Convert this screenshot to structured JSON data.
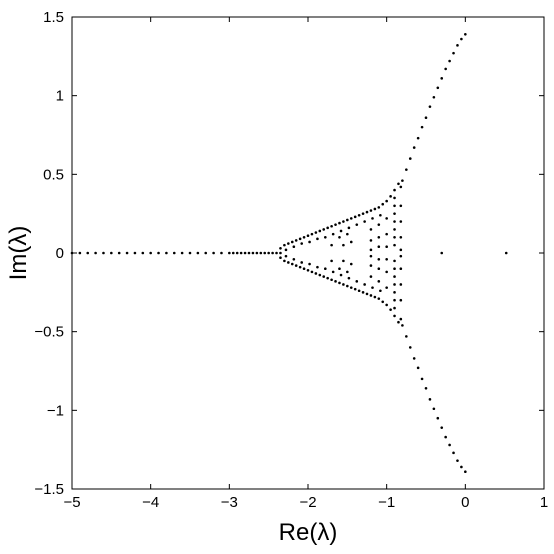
{
  "chart_data": {
    "type": "scatter",
    "title": "",
    "xlabel": "Re(λ)",
    "ylabel": "Im(λ)",
    "xlim": [
      -5,
      1
    ],
    "ylim": [
      -1.5,
      1.5
    ],
    "xticks": [
      "−5",
      "−4",
      "−3",
      "−2",
      "−1",
      "0",
      "1"
    ],
    "yticks": [
      "1.5",
      "1",
      "0.5",
      "0",
      "−0.5",
      "−1",
      "−1.5"
    ],
    "xtick_values": [
      -5,
      -4,
      -3,
      -2,
      -1,
      0,
      1
    ],
    "ytick_values": [
      1.5,
      1,
      0.5,
      0,
      -0.5,
      -1,
      -1.5
    ],
    "grid": false,
    "legend": "none",
    "marker_color": "#000000",
    "series": [
      {
        "values": [
          [
            -5.0,
            0
          ],
          [
            -4.9,
            0
          ],
          [
            -4.8,
            0
          ],
          [
            -4.7,
            0
          ],
          [
            -4.6,
            0
          ],
          [
            -4.5,
            0
          ],
          [
            -4.4,
            0
          ],
          [
            -4.3,
            0
          ],
          [
            -4.2,
            0
          ],
          [
            -4.1,
            0
          ],
          [
            -4.0,
            0
          ],
          [
            -3.9,
            0
          ],
          [
            -3.8,
            0
          ],
          [
            -3.7,
            0
          ],
          [
            -3.6,
            0
          ],
          [
            -3.5,
            0
          ],
          [
            -3.4,
            0
          ],
          [
            -3.3,
            0
          ],
          [
            -3.2,
            0
          ],
          [
            -3.1,
            0
          ],
          [
            -3.0,
            0
          ],
          [
            -2.95,
            0
          ],
          [
            -2.9,
            0
          ],
          [
            -2.85,
            0
          ],
          [
            -2.8,
            0
          ],
          [
            -2.75,
            0
          ],
          [
            -2.7,
            0
          ],
          [
            -2.65,
            0
          ],
          [
            -2.6,
            0
          ],
          [
            -2.55,
            0
          ],
          [
            -2.5,
            0
          ],
          [
            -2.45,
            0
          ],
          [
            -2.4,
            0
          ],
          [
            -2.35,
            0
          ],
          [
            -2.35,
            0.03
          ],
          [
            -2.3,
            0.05
          ],
          [
            -2.25,
            0.06
          ],
          [
            -2.2,
            0.07
          ],
          [
            -2.15,
            0.08
          ],
          [
            -2.1,
            0.09
          ],
          [
            -2.05,
            0.1
          ],
          [
            -2.0,
            0.11
          ],
          [
            -1.95,
            0.12
          ],
          [
            -1.9,
            0.13
          ],
          [
            -1.85,
            0.14
          ],
          [
            -1.8,
            0.15
          ],
          [
            -1.75,
            0.16
          ],
          [
            -1.7,
            0.17
          ],
          [
            -1.65,
            0.18
          ],
          [
            -1.6,
            0.19
          ],
          [
            -1.55,
            0.2
          ],
          [
            -1.5,
            0.21
          ],
          [
            -1.45,
            0.22
          ],
          [
            -1.4,
            0.23
          ],
          [
            -1.35,
            0.24
          ],
          [
            -1.3,
            0.25
          ],
          [
            -1.25,
            0.26
          ],
          [
            -1.2,
            0.27
          ],
          [
            -1.15,
            0.28
          ],
          [
            -1.1,
            0.29
          ],
          [
            -1.05,
            0.31
          ],
          [
            -1.0,
            0.33
          ],
          [
            -0.95,
            0.36
          ],
          [
            -0.9,
            0.4
          ],
          [
            -0.85,
            0.44
          ],
          [
            -2.35,
            -0.03
          ],
          [
            -2.3,
            -0.05
          ],
          [
            -2.25,
            -0.06
          ],
          [
            -2.2,
            -0.07
          ],
          [
            -2.15,
            -0.08
          ],
          [
            -2.1,
            -0.09
          ],
          [
            -2.05,
            -0.1
          ],
          [
            -2.0,
            -0.11
          ],
          [
            -1.95,
            -0.12
          ],
          [
            -1.9,
            -0.13
          ],
          [
            -1.85,
            -0.14
          ],
          [
            -1.8,
            -0.15
          ],
          [
            -1.75,
            -0.16
          ],
          [
            -1.7,
            -0.17
          ],
          [
            -1.65,
            -0.18
          ],
          [
            -1.6,
            -0.19
          ],
          [
            -1.55,
            -0.2
          ],
          [
            -1.5,
            -0.21
          ],
          [
            -1.45,
            -0.22
          ],
          [
            -1.4,
            -0.23
          ],
          [
            -1.35,
            -0.24
          ],
          [
            -1.3,
            -0.25
          ],
          [
            -1.25,
            -0.26
          ],
          [
            -1.2,
            -0.27
          ],
          [
            -1.15,
            -0.28
          ],
          [
            -1.1,
            -0.29
          ],
          [
            -1.05,
            -0.31
          ],
          [
            -1.0,
            -0.33
          ],
          [
            -0.95,
            -0.36
          ],
          [
            -0.9,
            -0.4
          ],
          [
            -0.85,
            -0.44
          ],
          [
            -2.28,
            0.02
          ],
          [
            -2.18,
            0.04
          ],
          [
            -2.08,
            0.06
          ],
          [
            -1.98,
            0.07
          ],
          [
            -1.88,
            0.09
          ],
          [
            -1.78,
            0.1
          ],
          [
            -1.68,
            0.12
          ],
          [
            -1.58,
            0.14
          ],
          [
            -1.48,
            0.16
          ],
          [
            -1.38,
            0.18
          ],
          [
            -1.28,
            0.2
          ],
          [
            -1.18,
            0.22
          ],
          [
            -1.08,
            0.24
          ],
          [
            -2.28,
            -0.02
          ],
          [
            -2.18,
            -0.04
          ],
          [
            -2.08,
            -0.06
          ],
          [
            -1.98,
            -0.07
          ],
          [
            -1.88,
            -0.09
          ],
          [
            -1.78,
            -0.1
          ],
          [
            -1.68,
            -0.12
          ],
          [
            -1.58,
            -0.14
          ],
          [
            -1.48,
            -0.16
          ],
          [
            -1.38,
            -0.18
          ],
          [
            -1.28,
            -0.2
          ],
          [
            -1.18,
            -0.22
          ],
          [
            -1.08,
            -0.24
          ],
          [
            -1.6,
            0.1
          ],
          [
            -1.55,
            0.05
          ],
          [
            -1.5,
            0.12
          ],
          [
            -1.45,
            0.07
          ],
          [
            -1.6,
            -0.1
          ],
          [
            -1.55,
            -0.05
          ],
          [
            -1.5,
            -0.12
          ],
          [
            -1.45,
            -0.07
          ],
          [
            -1.7,
            0.05
          ],
          [
            -1.7,
            -0.05
          ],
          [
            -1.2,
            0.15
          ],
          [
            -1.2,
            0.08
          ],
          [
            -1.2,
            0.02
          ],
          [
            -1.2,
            -0.02
          ],
          [
            -1.2,
            -0.08
          ],
          [
            -1.2,
            -0.15
          ],
          [
            -1.1,
            0.18
          ],
          [
            -1.1,
            0.1
          ],
          [
            -1.1,
            0.04
          ],
          [
            -1.1,
            -0.04
          ],
          [
            -1.1,
            -0.1
          ],
          [
            -1.1,
            -0.18
          ],
          [
            -1.0,
            0.22
          ],
          [
            -1.0,
            0.12
          ],
          [
            -1.0,
            0.04
          ],
          [
            -1.0,
            -0.04
          ],
          [
            -1.0,
            -0.12
          ],
          [
            -1.0,
            -0.22
          ],
          [
            -0.9,
            0.05
          ],
          [
            -0.9,
            0.1
          ],
          [
            -0.9,
            0.15
          ],
          [
            -0.9,
            0.2
          ],
          [
            -0.9,
            0.25
          ],
          [
            -0.9,
            0.3
          ],
          [
            -0.9,
            0.35
          ],
          [
            -0.9,
            -0.05
          ],
          [
            -0.9,
            -0.1
          ],
          [
            -0.9,
            -0.15
          ],
          [
            -0.9,
            -0.2
          ],
          [
            -0.9,
            -0.25
          ],
          [
            -0.9,
            -0.3
          ],
          [
            -0.9,
            -0.35
          ],
          [
            -0.82,
            0.02
          ],
          [
            -0.82,
            0.1
          ],
          [
            -0.82,
            0.2
          ],
          [
            -0.82,
            0.3
          ],
          [
            -0.82,
            0.42
          ],
          [
            -0.82,
            -0.02
          ],
          [
            -0.82,
            -0.1
          ],
          [
            -0.82,
            -0.2
          ],
          [
            -0.82,
            -0.3
          ],
          [
            -0.82,
            -0.42
          ],
          [
            -0.8,
            0.46
          ],
          [
            -0.75,
            0.53
          ],
          [
            -0.7,
            0.6
          ],
          [
            -0.65,
            0.67
          ],
          [
            -0.6,
            0.73
          ],
          [
            -0.55,
            0.8
          ],
          [
            -0.5,
            0.86
          ],
          [
            -0.45,
            0.93
          ],
          [
            -0.4,
            0.99
          ],
          [
            -0.35,
            1.05
          ],
          [
            -0.3,
            1.11
          ],
          [
            -0.25,
            1.17
          ],
          [
            -0.2,
            1.22
          ],
          [
            -0.15,
            1.27
          ],
          [
            -0.1,
            1.32
          ],
          [
            -0.05,
            1.36
          ],
          [
            0.0,
            1.39
          ],
          [
            -0.8,
            -0.46
          ],
          [
            -0.75,
            -0.53
          ],
          [
            -0.7,
            -0.6
          ],
          [
            -0.65,
            -0.67
          ],
          [
            -0.6,
            -0.73
          ],
          [
            -0.55,
            -0.8
          ],
          [
            -0.5,
            -0.86
          ],
          [
            -0.45,
            -0.93
          ],
          [
            -0.4,
            -0.99
          ],
          [
            -0.35,
            -1.05
          ],
          [
            -0.3,
            -1.11
          ],
          [
            -0.25,
            -1.17
          ],
          [
            -0.2,
            -1.22
          ],
          [
            -0.15,
            -1.27
          ],
          [
            -0.1,
            -1.32
          ],
          [
            -0.05,
            -1.36
          ],
          [
            0.0,
            -1.39
          ],
          [
            -0.3,
            0
          ],
          [
            0.52,
            0
          ]
        ]
      }
    ]
  }
}
